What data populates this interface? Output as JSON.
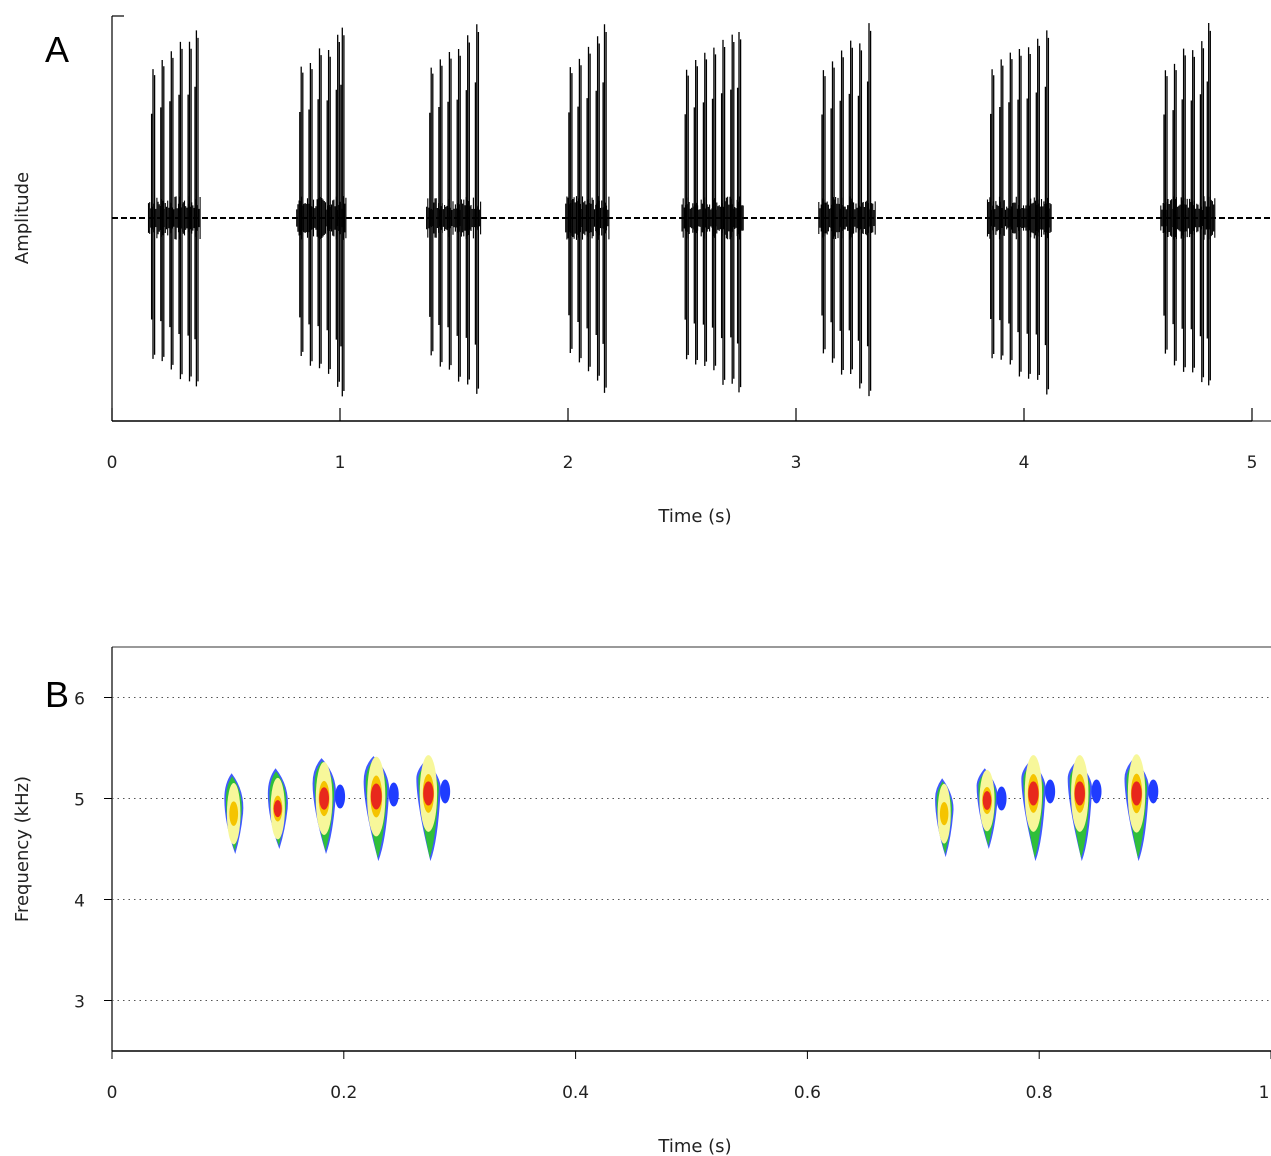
{
  "chart_data": [
    {
      "panel_label": "A",
      "type": "line",
      "xlabel": "Time (s)",
      "ylabel": "Amplitude",
      "xlim": [
        0,
        5
      ],
      "x_ticks": [
        "0",
        "1",
        "2",
        "3",
        "4",
        "5"
      ],
      "y_ticks": [],
      "baseline": "dashed",
      "series": [
        {
          "bursts": [
            {
              "start": 0.16,
              "end": 0.39,
              "pulses": [
                0.18,
                0.22,
                0.26,
                0.3,
                0.34,
                0.37
              ]
            },
            {
              "start": 0.81,
              "end": 1.03,
              "pulses": [
                0.83,
                0.87,
                0.91,
                0.95,
                0.99,
                1.01
              ]
            },
            {
              "start": 1.38,
              "end": 1.62,
              "pulses": [
                1.4,
                1.44,
                1.48,
                1.52,
                1.56,
                1.6
              ]
            },
            {
              "start": 1.99,
              "end": 2.18,
              "pulses": [
                2.01,
                2.05,
                2.09,
                2.13,
                2.16
              ]
            },
            {
              "start": 2.5,
              "end": 2.77,
              "pulses": [
                2.52,
                2.56,
                2.6,
                2.64,
                2.68,
                2.72,
                2.75
              ]
            },
            {
              "start": 3.1,
              "end": 3.35,
              "pulses": [
                3.12,
                3.16,
                3.2,
                3.24,
                3.28,
                3.32
              ]
            },
            {
              "start": 3.84,
              "end": 4.12,
              "pulses": [
                3.86,
                3.9,
                3.94,
                3.98,
                4.02,
                4.06,
                4.1
              ]
            },
            {
              "start": 4.6,
              "end": 4.84,
              "pulses": [
                4.62,
                4.66,
                4.7,
                4.74,
                4.78,
                4.81
              ]
            }
          ]
        }
      ]
    },
    {
      "panel_label": "B",
      "type": "heatmap",
      "xlabel": "Time (s)",
      "ylabel": "Frequency (kHz)",
      "xlim": [
        0,
        1
      ],
      "ylim": [
        2.5,
        6.5
      ],
      "x_ticks": [
        "0",
        "0.2",
        "0.4",
        "0.6",
        "0.8",
        "1"
      ],
      "y_ticks": [
        "3",
        "4",
        "5",
        "6"
      ],
      "grid": "dotted horizontal",
      "colors": {
        "high": "#e8281c",
        "mid": "#f5c400",
        "low": "#f7f79a",
        "edge": "#2fbf3a",
        "outer": "#1f3cff"
      },
      "notes": [
        {
          "time": 0.105,
          "fmin": 4.45,
          "fmax": 5.25,
          "peak": 4.85,
          "intensity": 0.4
        },
        {
          "time": 0.143,
          "fmin": 4.5,
          "fmax": 5.3,
          "peak": 4.9,
          "intensity": 0.5
        },
        {
          "time": 0.183,
          "fmin": 4.45,
          "fmax": 5.4,
          "peak": 5.0,
          "intensity": 0.8
        },
        {
          "time": 0.228,
          "fmin": 4.38,
          "fmax": 5.42,
          "peak": 5.02,
          "intensity": 1.0
        },
        {
          "time": 0.273,
          "fmin": 4.38,
          "fmax": 5.38,
          "peak": 5.05,
          "intensity": 0.9
        },
        {
          "time": 0.718,
          "fmin": 4.42,
          "fmax": 5.2,
          "peak": 4.85,
          "intensity": 0.35
        },
        {
          "time": 0.755,
          "fmin": 4.5,
          "fmax": 5.3,
          "peak": 4.98,
          "intensity": 0.6
        },
        {
          "time": 0.795,
          "fmin": 4.38,
          "fmax": 5.38,
          "peak": 5.05,
          "intensity": 0.9
        },
        {
          "time": 0.835,
          "fmin": 4.38,
          "fmax": 5.38,
          "peak": 5.05,
          "intensity": 0.9
        },
        {
          "time": 0.884,
          "fmin": 4.38,
          "fmax": 5.4,
          "peak": 5.05,
          "intensity": 0.9
        }
      ]
    }
  ]
}
